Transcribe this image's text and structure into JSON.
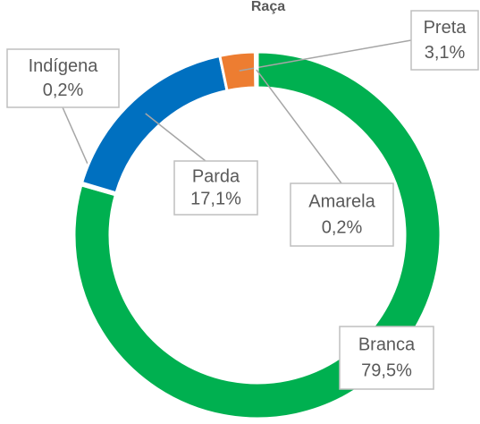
{
  "chart_data": {
    "type": "pie",
    "donut": true,
    "title": "Raça",
    "categories": [
      "Branca",
      "Indígena",
      "Parda",
      "Preta",
      "Amarela"
    ],
    "values": [
      79.5,
      0.2,
      17.1,
      3.1,
      0.2
    ],
    "value_labels": [
      "79,5%",
      "0,2%",
      "17,1%",
      "3,1%",
      "0,2%"
    ],
    "colors": [
      "#00b050",
      "#a5a5a5",
      "#0070c0",
      "#ed7d31",
      "#ffc000"
    ]
  }
}
